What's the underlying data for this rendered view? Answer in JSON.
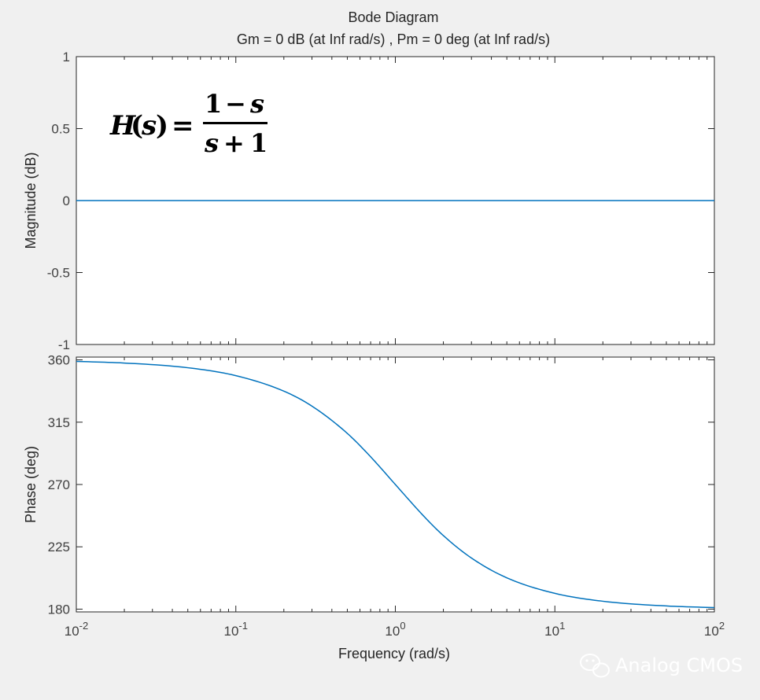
{
  "figure": {
    "title": "Bode Diagram",
    "subtitle": "Gm = 0 dB (at Inf rad/s) ,  Pm = 0 deg (at Inf rad/s)",
    "background": "#f0f0f0",
    "axes_background": "#ffffff",
    "line_color": "#0072bd",
    "tick_color": "#262626",
    "grid_tick_color": "#888888"
  },
  "annotation": {
    "lhs_H": "H",
    "lhs_open": "(",
    "lhs_s": "s",
    "lhs_close": ")",
    "equals": "=",
    "num_one": "1",
    "num_minus": "−",
    "num_s": "s",
    "den_s": "s",
    "den_plus": "+",
    "den_one": "1"
  },
  "watermark": {
    "icon": "wechat-icon",
    "text": "Analog CMOS"
  },
  "chart_data": [
    {
      "type": "line",
      "panel": "magnitude",
      "title": "",
      "ylabel": "Magnitude (dB)",
      "xlabel": "",
      "xscale": "log",
      "xlim": [
        0.01,
        100
      ],
      "ylim": [
        -1,
        1
      ],
      "yticks": [
        1,
        0.5,
        0,
        -0.5,
        -1
      ],
      "ytick_labels": [
        "1",
        "0.5",
        "0",
        "-0.5",
        "-1"
      ],
      "grid": false,
      "series": [
        {
          "x": [
            0.01,
            0.1,
            1,
            10,
            100
          ],
          "y": [
            0,
            0,
            0,
            0,
            0
          ]
        }
      ]
    },
    {
      "type": "line",
      "panel": "phase",
      "title": "",
      "ylabel": "Phase (deg)",
      "xlabel": "Frequency  (rad/s)",
      "xscale": "log",
      "xlim": [
        0.01,
        100
      ],
      "ylim": [
        178,
        362
      ],
      "yticks": [
        360,
        315,
        270,
        225,
        180
      ],
      "ytick_labels": [
        "360",
        "315",
        "270",
        "225",
        "180"
      ],
      "xtick_base": "10",
      "xtick_exponents": [
        "-2",
        "-1",
        "0",
        "1",
        "2"
      ],
      "grid": false,
      "series": [
        {
          "x": [
            0.01,
            0.02,
            0.05,
            0.1,
            0.2,
            0.3,
            0.5,
            0.7,
            1,
            1.5,
            2,
            3,
            5,
            10,
            20,
            50,
            100
          ],
          "y": [
            358.9,
            357.7,
            354.3,
            348.6,
            337.4,
            326.6,
            306.9,
            290.0,
            270.0,
            247.4,
            233.1,
            216.9,
            202.6,
            191.4,
            185.7,
            182.3,
            181.1
          ]
        }
      ]
    }
  ]
}
